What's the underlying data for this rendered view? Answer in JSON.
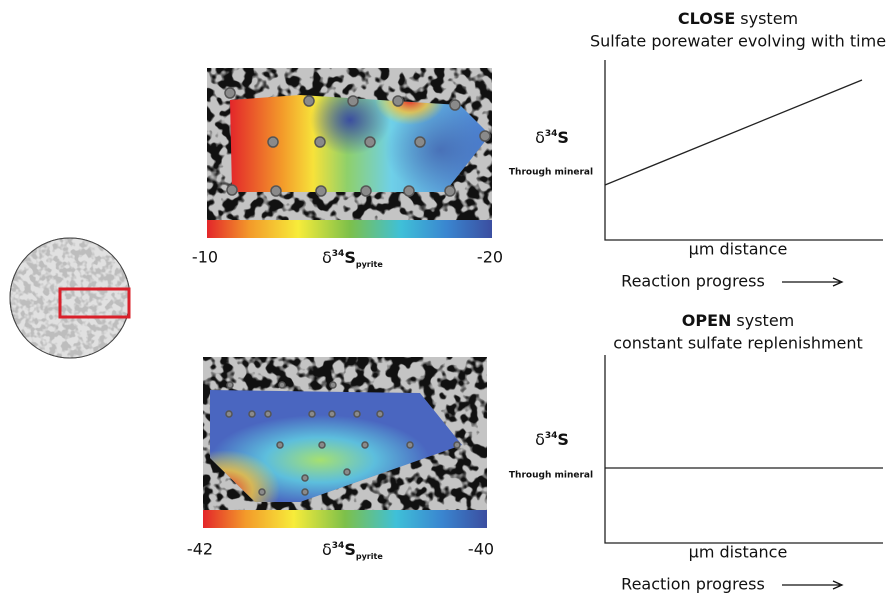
{
  "maps": [
    {
      "scale_min": "-10",
      "scale_max": "-20",
      "label": {
        "symbol": "δ",
        "mass": "34",
        "element": "S",
        "subscript": "pyrite"
      }
    },
    {
      "scale_min": "-42",
      "scale_max": "-40",
      "label": {
        "symbol": "δ",
        "mass": "34",
        "element": "S",
        "subscript": "pyrite"
      }
    }
  ],
  "models": [
    {
      "title_bold": "CLOSE",
      "title_rest": "system",
      "subtitle": "Sulfate porewater evolving with time",
      "y_label": {
        "symbol": "δ",
        "mass": "34",
        "element": "S"
      },
      "y_note": "Through mineral",
      "x_label": "µm distance",
      "progress": "Reaction progress"
    },
    {
      "title_bold": "OPEN",
      "title_rest": "system",
      "subtitle": "constant sulfate replenishment",
      "y_label": {
        "symbol": "δ",
        "mass": "34",
        "element": "S"
      },
      "y_note": "Through mineral",
      "x_label": "µm distance",
      "progress": "Reaction progress"
    }
  ]
}
